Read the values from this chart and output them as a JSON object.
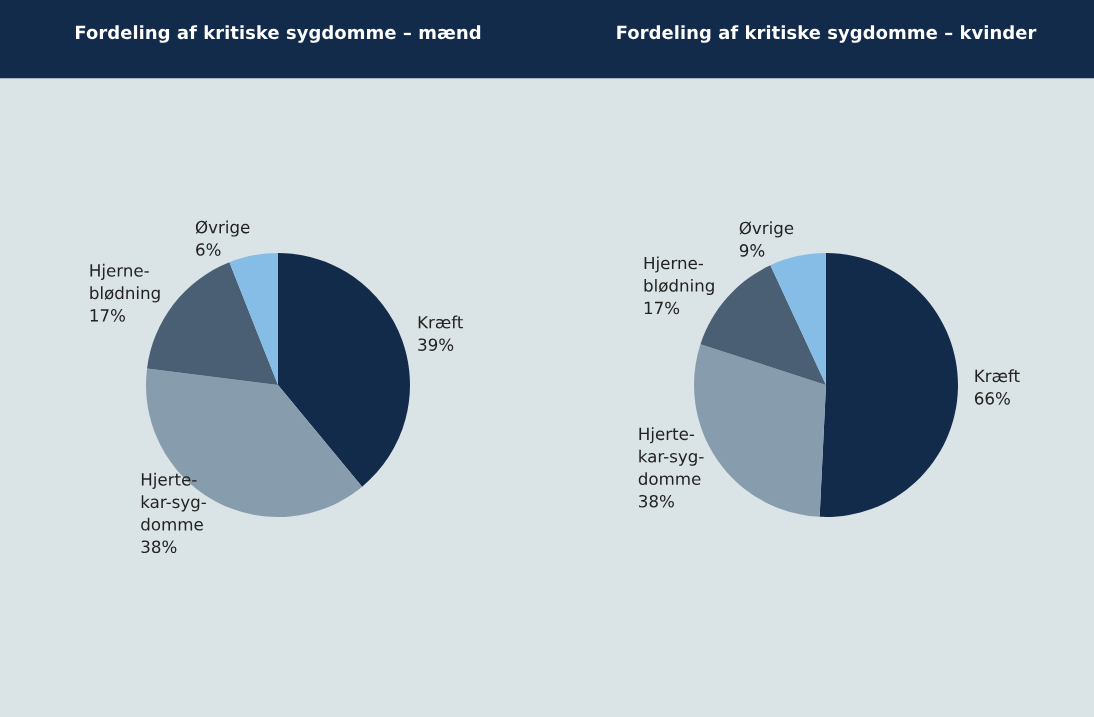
{
  "chart_data": [
    {
      "type": "pie",
      "title": "Fordeling af kritiske sygdomme – mænd",
      "categories": [
        "Kræft",
        "Hjerte-\nkar-syg-\ndomme",
        "Hjerne-\nblødning",
        "Øvrige"
      ],
      "values": [
        39,
        38,
        17,
        6
      ],
      "value_labels": [
        "39%",
        "38%",
        "17%",
        "6%"
      ],
      "colors": [
        "#132b4b",
        "#879cad",
        "#4a5e74",
        "#86bde6"
      ]
    },
    {
      "type": "pie",
      "title": "Fordeling af kritiske sygdomme – kvinder",
      "categories": [
        "Kræft",
        "Hjerte-\nkar-syg-\ndomme",
        "Hjerne-\nblødning",
        "Øvrige"
      ],
      "values": [
        66,
        38,
        17,
        9
      ],
      "value_labels": [
        "66%",
        "38%",
        "17%",
        "9%"
      ],
      "colors": [
        "#132b4b",
        "#879cad",
        "#4a5e74",
        "#86bde6"
      ]
    }
  ]
}
